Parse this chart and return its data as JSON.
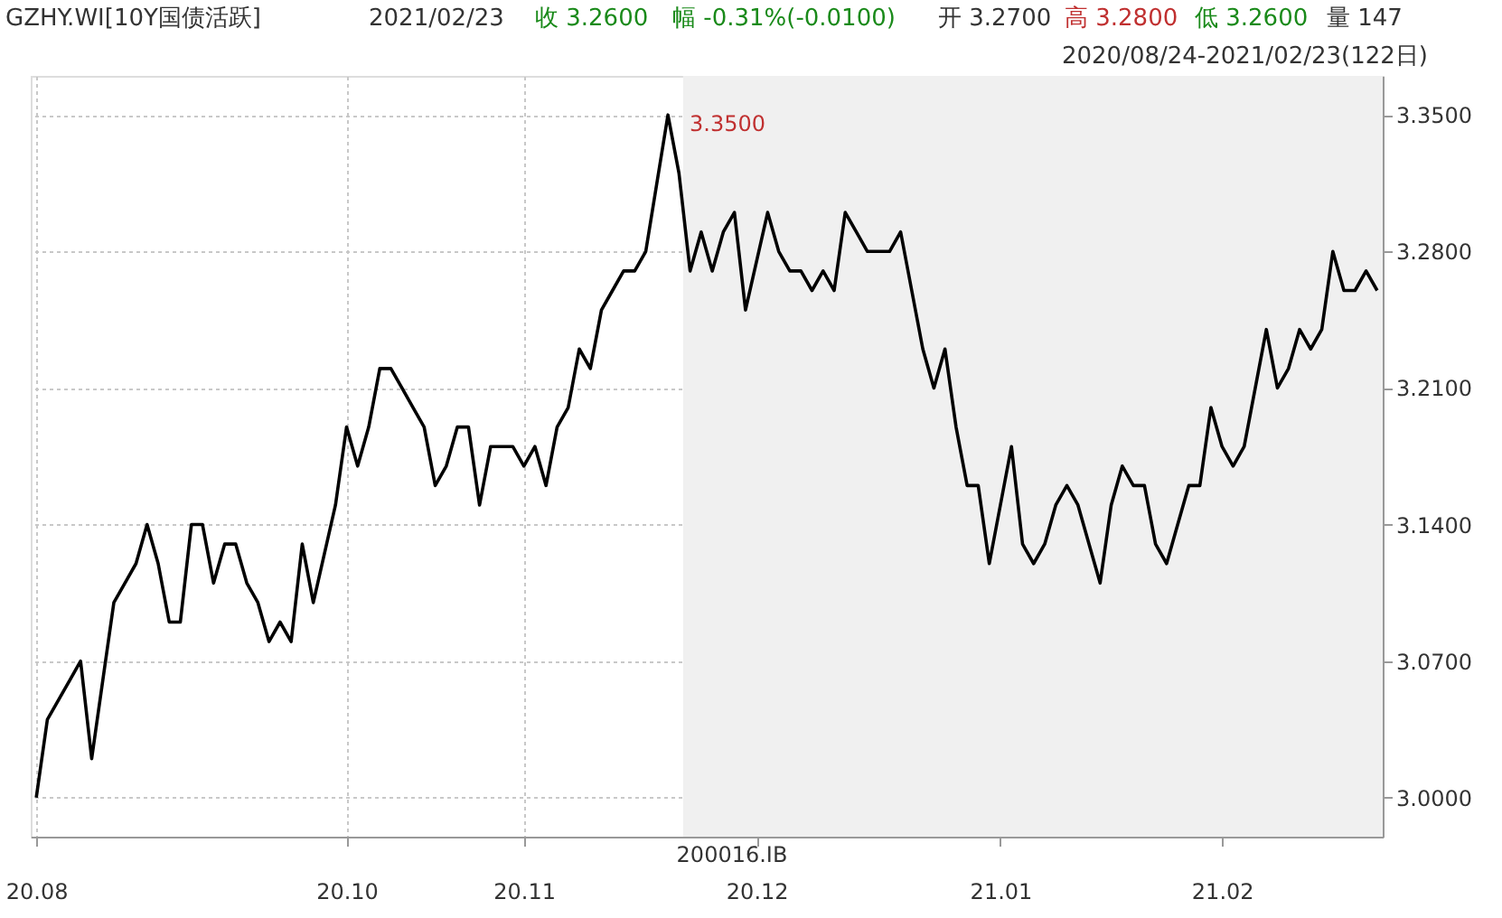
{
  "chart_data": {
    "type": "line",
    "title": "GZHY.WI[10Y国债活跃]",
    "annotations": [
      "2021/02/23",
      "收 3.2600",
      "幅 -0.31%(-0.0100)",
      "开 3.2700",
      "高 3.2800",
      "低 3.2600",
      "量 147",
      "2020/08/24-2021/02/23(122日)",
      "200016.IB",
      "3.3500"
    ],
    "categories": [
      "20.08",
      null,
      null,
      null,
      null,
      null,
      null,
      null,
      null,
      null,
      null,
      null,
      null,
      null,
      null,
      null,
      null,
      null,
      null,
      null,
      null,
      null,
      null,
      null,
      null,
      null,
      null,
      null,
      "20.10",
      null,
      null,
      null,
      null,
      null,
      null,
      null,
      null,
      null,
      null,
      null,
      null,
      null,
      null,
      null,
      "20.11",
      null,
      null,
      null,
      null,
      null,
      null,
      null,
      null,
      null,
      null,
      null,
      null,
      null,
      null,
      null,
      null,
      null,
      null,
      null,
      null,
      "20.12",
      null,
      null,
      null,
      null,
      null,
      null,
      null,
      null,
      null,
      null,
      null,
      null,
      null,
      null,
      null,
      null,
      null,
      null,
      null,
      null,
      null,
      "21.01",
      null,
      null,
      null,
      null,
      null,
      null,
      null,
      null,
      null,
      null,
      null,
      null,
      null,
      null,
      null,
      null,
      null,
      null,
      null,
      "21.02",
      null,
      null,
      null,
      null,
      null,
      null,
      null,
      null,
      null,
      null,
      null,
      null,
      null,
      null
    ],
    "series": [
      {
        "color": "#000000",
        "values": [
          3.0,
          3.04,
          3.05,
          3.06,
          3.07,
          3.02,
          3.06,
          3.1,
          3.11,
          3.12,
          3.14,
          3.12,
          3.09,
          3.09,
          3.14,
          3.14,
          3.11,
          3.13,
          3.13,
          3.11,
          3.1,
          3.08,
          3.09,
          3.08,
          3.13,
          3.1,
          3.125,
          3.15,
          3.19,
          3.17,
          3.19,
          3.22,
          3.22,
          3.21,
          3.2,
          3.19,
          3.16,
          3.17,
          3.19,
          3.19,
          3.15,
          3.18,
          3.18,
          3.18,
          3.17,
          3.18,
          3.16,
          3.19,
          3.2,
          3.23,
          3.22,
          3.25,
          3.26,
          3.27,
          3.27,
          3.28,
          3.315,
          3.35,
          3.32,
          3.27,
          3.29,
          3.27,
          3.29,
          3.3,
          3.25,
          3.275,
          3.3,
          3.28,
          3.27,
          3.27,
          3.26,
          3.27,
          3.26,
          3.3,
          3.29,
          3.28,
          3.28,
          3.28,
          3.29,
          3.26,
          3.23,
          3.21,
          3.23,
          3.19,
          3.16,
          3.16,
          3.12,
          3.15,
          3.18,
          3.13,
          3.12,
          3.13,
          3.15,
          3.16,
          3.15,
          3.13,
          3.11,
          3.15,
          3.17,
          3.16,
          3.16,
          3.13,
          3.12,
          3.14,
          3.16,
          3.16,
          3.2,
          3.18,
          3.17,
          3.18,
          3.21,
          3.24,
          3.21,
          3.22,
          3.24,
          3.23,
          3.24,
          3.28,
          3.26,
          3.26,
          3.27,
          3.26
        ]
      }
    ],
    "ylim": [
      2.98,
      3.37
    ],
    "yticks": [
      {
        "value": 3.0,
        "label": "3.0000"
      },
      {
        "value": 3.07,
        "label": "3.0700"
      },
      {
        "value": 3.14,
        "label": "3.1400"
      },
      {
        "value": 3.21,
        "label": "3.2100"
      },
      {
        "value": 3.28,
        "label": "3.2800"
      },
      {
        "value": 3.35,
        "label": "3.3500"
      }
    ],
    "grid": true,
    "marker": "none",
    "line_style": "solid"
  }
}
